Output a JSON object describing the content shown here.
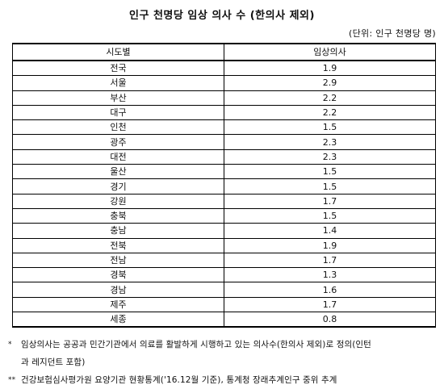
{
  "title": "인구 천명당 임상 의사 수 (한의사 제외)",
  "unit": "(단위: 인구 천명당 명)",
  "table": {
    "headers": [
      "시도별",
      "임상의사"
    ],
    "rows": [
      [
        "전국",
        "1.9"
      ],
      [
        "서울",
        "2.9"
      ],
      [
        "부산",
        "2.2"
      ],
      [
        "대구",
        "2.2"
      ],
      [
        "인천",
        "1.5"
      ],
      [
        "광주",
        "2.3"
      ],
      [
        "대전",
        "2.3"
      ],
      [
        "울산",
        "1.5"
      ],
      [
        "경기",
        "1.5"
      ],
      [
        "강원",
        "1.7"
      ],
      [
        "충북",
        "1.5"
      ],
      [
        "충남",
        "1.4"
      ],
      [
        "전북",
        "1.9"
      ],
      [
        "전남",
        "1.7"
      ],
      [
        "경북",
        "1.3"
      ],
      [
        "경남",
        "1.6"
      ],
      [
        "제주",
        "1.7"
      ],
      [
        "세종",
        "0.8"
      ]
    ]
  },
  "notes": {
    "note1_mark": "*",
    "note1_line1": "임상의사는 공공과 민간기관에서 의료를 활발하게 시행하고 있는 의사수(한의사 제외)로 정의(인턴",
    "note1_line2": "과 레지던트 포함)",
    "note2_mark": "**",
    "note2_line1": "건강보험심사평가원 요양기관 현황통계('16.12월 기준), 통계청 장래추계인구 중위 추계"
  }
}
